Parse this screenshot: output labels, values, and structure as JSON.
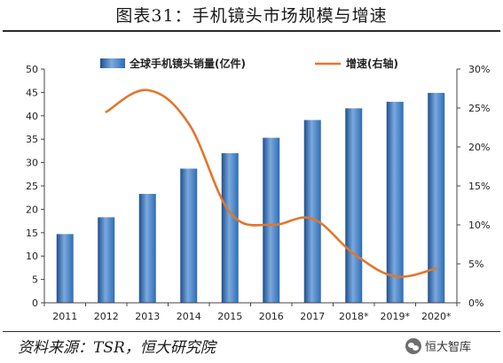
{
  "title": "图表31：手机镜头市场规模与增速",
  "source": "资料来源：TSR，恒大研究院",
  "watermark": "恒大智库",
  "colors": {
    "bar": "#2f6db5",
    "line": "#e3762d"
  },
  "chart_data": {
    "type": "bar",
    "categories": [
      "2011",
      "2012",
      "2013",
      "2014",
      "2015",
      "2016",
      "2017",
      "2018*",
      "2019*",
      "2020*"
    ],
    "series": [
      {
        "name": "全球手机镜头销量(亿件)",
        "type": "bar",
        "axis": "left",
        "values": [
          14.7,
          18.3,
          23.3,
          28.7,
          32.0,
          35.3,
          39.1,
          41.6,
          43.0,
          44.9
        ]
      },
      {
        "name": "增速(右轴)",
        "type": "line",
        "axis": "right",
        "unit": "%",
        "values": [
          null,
          24.5,
          27.3,
          23.0,
          11.6,
          10.0,
          10.8,
          6.3,
          3.4,
          4.4
        ]
      }
    ],
    "ylim_left": [
      0,
      50
    ],
    "yticks_left": [
      "0",
      "5",
      "10",
      "15",
      "20",
      "25",
      "30",
      "35",
      "40",
      "45",
      "50"
    ],
    "ylim_right": [
      0,
      30
    ],
    "yticks_right": [
      "0%",
      "5%",
      "10%",
      "15%",
      "20%",
      "25%",
      "30%"
    ],
    "grid": false,
    "legend_position": "top"
  }
}
